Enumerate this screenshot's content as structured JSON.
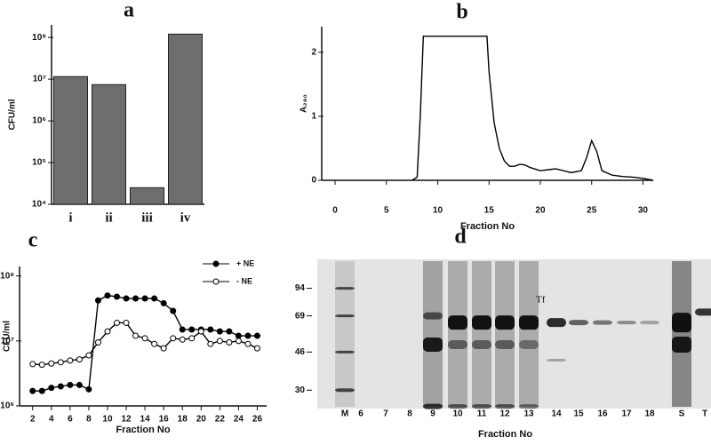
{
  "chart_data": [
    {
      "label": "a",
      "type": "bar",
      "log": true,
      "ylabel": "CFU/ml",
      "color": "#6e6e6e",
      "categories": [
        "i",
        "ii",
        "iii",
        "iv"
      ],
      "values": [
        11500000,
        7400000,
        25000,
        120000000
      ],
      "ylim": [
        10000,
        200000000
      ],
      "yticks": [
        {
          "value": 10000,
          "label": "10⁴"
        },
        {
          "value": 100000,
          "label": "10⁵"
        },
        {
          "value": 1000000,
          "label": "10⁶"
        },
        {
          "value": 10000000,
          "label": "10⁷"
        },
        {
          "value": 100000000,
          "label": "10⁸"
        }
      ]
    },
    {
      "label": "b",
      "type": "line",
      "xlabel": "Fraction No",
      "ylabel": "A₂₈₀",
      "color": "#000000",
      "x": [
        7.5,
        8,
        8.3,
        8.6,
        14.8,
        15,
        15.5,
        16,
        16.5,
        17,
        17.5,
        18,
        18.5,
        19,
        20,
        21,
        21.5,
        22,
        23,
        24,
        24.5,
        25,
        25.5,
        26,
        27,
        28,
        29,
        30,
        31
      ],
      "values": [
        0,
        0.05,
        1.0,
        2.25,
        2.25,
        1.7,
        0.9,
        0.5,
        0.3,
        0.22,
        0.22,
        0.25,
        0.24,
        0.2,
        0.15,
        0.17,
        0.18,
        0.16,
        0.12,
        0.15,
        0.35,
        0.62,
        0.45,
        0.15,
        0.08,
        0.06,
        0.05,
        0.03,
        0
      ],
      "xlim": [
        -1.3,
        31
      ],
      "ylim": [
        0,
        2.4
      ],
      "xticks": [
        0,
        5,
        10,
        15,
        20,
        25,
        30
      ],
      "yticks": [
        0,
        1,
        2
      ]
    },
    {
      "label": "c",
      "type": "line",
      "log": true,
      "xlabel": "Fraction No",
      "ylabel": "CFU/ml",
      "legend": "upper right",
      "x": [
        2,
        3,
        4,
        5,
        6,
        7,
        8,
        9,
        10,
        11,
        12,
        13,
        14,
        15,
        16,
        17,
        18,
        19,
        20,
        21,
        22,
        23,
        24,
        25,
        26
      ],
      "series": [
        {
          "name": "+ NE",
          "color": "#000000",
          "marker": "filled",
          "values": [
            1700000,
            1700000,
            1900000,
            2000000,
            2100000,
            2100000,
            1800000,
            42000000,
            50000000,
            48000000,
            45000000,
            45000000,
            45000000,
            45000000,
            38000000,
            29000000,
            15000000,
            15000000,
            15000000,
            15000000,
            14000000,
            14000000,
            12000000,
            12000000,
            12000000
          ]
        },
        {
          "name": "- NE",
          "color": "#000000",
          "marker": "open",
          "values": [
            4400000,
            4300000,
            4500000,
            4700000,
            5000000,
            5200000,
            6000000,
            9500000,
            14000000,
            19000000,
            19000000,
            12000000,
            11000000,
            9000000,
            7700000,
            11000000,
            10500000,
            11000000,
            14000000,
            9000000,
            10000000,
            9500000,
            10000000,
            9000000,
            7700000
          ]
        }
      ],
      "xlim": [
        0.6,
        27
      ],
      "ylim": [
        1000000,
        140000000
      ],
      "xticks": [
        2,
        4,
        6,
        8,
        10,
        12,
        14,
        16,
        18,
        20,
        22,
        24,
        26
      ],
      "yticks": [
        {
          "value": 1000000,
          "label": "10⁶"
        },
        {
          "value": 10000000,
          "label": "10⁷"
        },
        {
          "value": 100000000,
          "label": "10⁸"
        }
      ]
    },
    {
      "label": "d",
      "type": "gel",
      "log": true,
      "xlabel": "Fraction No",
      "annotation": "Tf",
      "categories": [
        "M",
        "6",
        "7",
        "8",
        "9",
        "10",
        "11",
        "12",
        "13",
        "14",
        "15",
        "16",
        "17",
        "18",
        "S",
        "T"
      ],
      "ylim": [
        20,
        130
      ],
      "yticks": [
        94,
        69,
        46,
        30
      ]
    }
  ]
}
